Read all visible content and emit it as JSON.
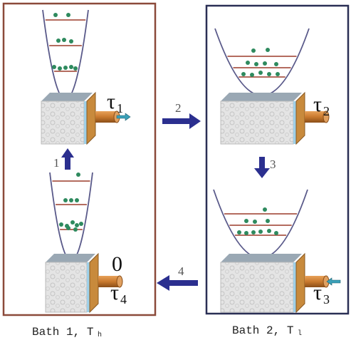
{
  "panels": [
    {
      "caption": "Bath 1, T",
      "caption_sub": "h"
    },
    {
      "caption": "Bath 2, T",
      "caption_sub": "l"
    }
  ],
  "states": [
    {
      "tau": "τ",
      "tau_sub": "1"
    },
    {
      "tau": "τ",
      "tau_sub": "2"
    },
    {
      "tau": "τ",
      "tau_sub": "3"
    },
    {
      "tau": "τ",
      "tau_sub": "4",
      "value": "0"
    }
  ],
  "steps": [
    "1",
    "2",
    "3",
    "4"
  ]
}
